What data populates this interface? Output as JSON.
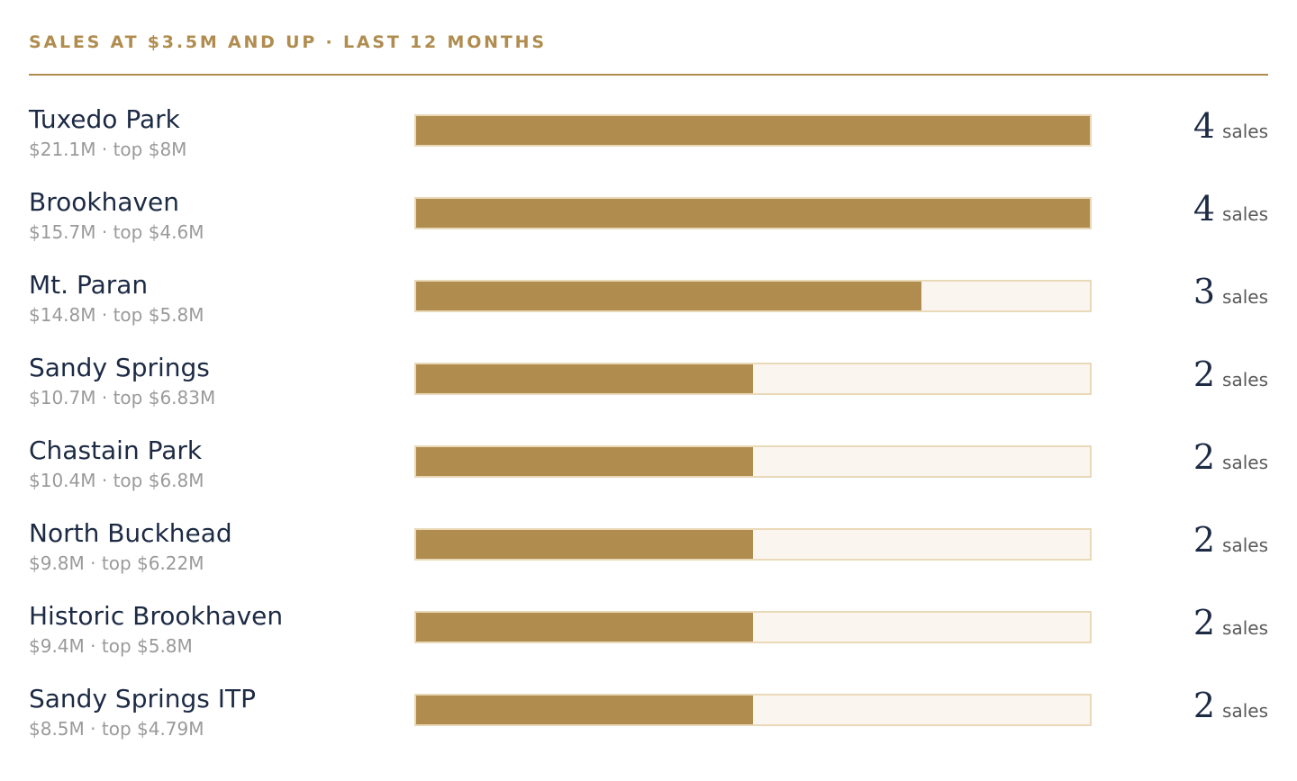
{
  "header": {
    "title": "SALES AT $3.5M AND UP · LAST 12 MONTHS"
  },
  "colors": {
    "accent": "#b08c4f",
    "bar_track": "#faf6ef",
    "bar_track_border": "#ead9b8",
    "name_text": "#1c2a44",
    "sub_text": "#9a9a9a"
  },
  "chart_data": {
    "type": "bar",
    "orientation": "horizontal",
    "title": "SALES AT $3.5M AND UP · LAST 12 MONTHS",
    "xlim": [
      0,
      4
    ],
    "categories": [
      "Tuxedo Park",
      "Brookhaven",
      "Mt. Paran",
      "Sandy Springs",
      "Chastain Park",
      "North Buckhead",
      "Historic Brookhaven",
      "Sandy Springs ITP"
    ],
    "values": [
      4,
      4,
      3,
      2,
      2,
      2,
      2,
      2
    ],
    "rows": [
      {
        "name": "Tuxedo Park",
        "summary": "$21.1M · top $8M",
        "count": "4",
        "unit": "sales"
      },
      {
        "name": "Brookhaven",
        "summary": "$15.7M · top $4.6M",
        "count": "4",
        "unit": "sales"
      },
      {
        "name": "Mt. Paran",
        "summary": "$14.8M · top $5.8M",
        "count": "3",
        "unit": "sales"
      },
      {
        "name": "Sandy Springs",
        "summary": "$10.7M · top $6.83M",
        "count": "2",
        "unit": "sales"
      },
      {
        "name": "Chastain Park",
        "summary": "$10.4M · top $6.8M",
        "count": "2",
        "unit": "sales"
      },
      {
        "name": "North Buckhead",
        "summary": "$9.8M · top $6.22M",
        "count": "2",
        "unit": "sales"
      },
      {
        "name": "Historic Brookhaven",
        "summary": "$9.4M · top $5.8M",
        "count": "2",
        "unit": "sales"
      },
      {
        "name": "Sandy Springs ITP",
        "summary": "$8.5M · top $4.79M",
        "count": "2",
        "unit": "sales"
      }
    ]
  }
}
